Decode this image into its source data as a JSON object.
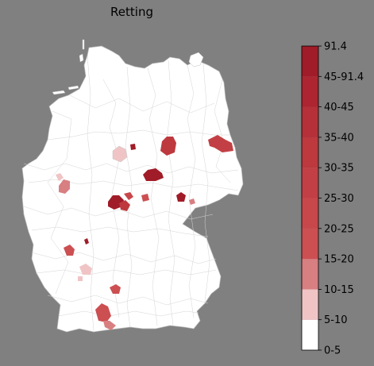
{
  "map": {
    "title": "Retting",
    "colors": {
      "background": "#808080",
      "land": "#ffffff",
      "border": "#c9c9c9"
    }
  },
  "colorbar": {
    "bins": [
      {
        "label": "0-5",
        "color": "#ffffff"
      },
      {
        "label": "5-10",
        "color": "#f0c4c5"
      },
      {
        "label": "10-15",
        "color": "#d87f81"
      },
      {
        "label": "15-20",
        "color": "#cc4f52"
      },
      {
        "label": "20-25",
        "color": "#c8474a"
      },
      {
        "label": "25-30",
        "color": "#c24045"
      },
      {
        "label": "30-35",
        "color": "#bd393e"
      },
      {
        "label": "35-40",
        "color": "#b53038"
      },
      {
        "label": "40-45",
        "color": "#ad2530"
      },
      {
        "label": "45-91.4",
        "color": "#a01c28"
      }
    ],
    "top_label": "91.4",
    "top_color": "#900a1c"
  }
}
